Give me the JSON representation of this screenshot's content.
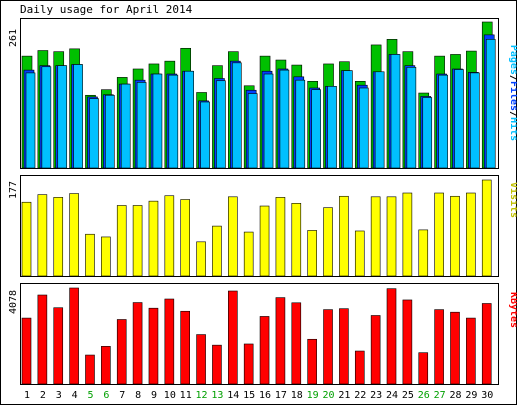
{
  "chart_data": [
    {
      "type": "bar",
      "title": "Daily usage for April 2014",
      "max_label": "261",
      "legend": [
        {
          "text": "Pages",
          "color": "#00c0ff"
        },
        {
          "text": "/",
          "color": "#000000"
        },
        {
          "text": "Files",
          "color": "#0040ff"
        },
        {
          "text": "/",
          "color": "#000000"
        },
        {
          "text": "Hits",
          "color": "#00c0ff"
        }
      ],
      "categories": [
        "1",
        "2",
        "3",
        "4",
        "5",
        "6",
        "7",
        "8",
        "9",
        "10",
        "11",
        "12",
        "13",
        "14",
        "15",
        "16",
        "17",
        "18",
        "19",
        "20",
        "21",
        "22",
        "23",
        "24",
        "25",
        "26",
        "27",
        "28",
        "29",
        "30"
      ],
      "weekend": [
        false,
        false,
        false,
        false,
        true,
        true,
        false,
        false,
        false,
        false,
        false,
        true,
        true,
        false,
        false,
        false,
        false,
        false,
        true,
        true,
        false,
        false,
        false,
        false,
        false,
        true,
        true,
        false,
        false,
        false
      ],
      "ylim": [
        0,
        261
      ],
      "series": [
        {
          "name": "Hits",
          "color": "#00c000",
          "values": [
            200,
            210,
            208,
            213,
            130,
            140,
            162,
            177,
            186,
            191,
            214,
            135,
            183,
            208,
            147,
            200,
            193,
            184,
            155,
            186,
            190,
            155,
            220,
            230,
            208,
            134,
            200,
            203,
            209,
            261
          ]
        },
        {
          "name": "Files",
          "color": "#0040ff",
          "values": [
            175,
            183,
            183,
            185,
            127,
            131,
            150,
            157,
            168,
            168,
            173,
            120,
            160,
            191,
            139,
            173,
            177,
            163,
            143,
            146,
            174,
            148,
            172,
            203,
            183,
            128,
            168,
            177,
            171,
            238
          ]
        },
        {
          "name": "Pages",
          "color": "#00c0ff",
          "values": [
            170,
            181,
            183,
            185,
            124,
            130,
            150,
            153,
            168,
            166,
            173,
            118,
            156,
            188,
            133,
            168,
            175,
            157,
            140,
            146,
            174,
            143,
            172,
            203,
            180,
            126,
            166,
            176,
            170,
            230
          ]
        }
      ]
    },
    {
      "type": "bar",
      "max_label": "177",
      "legend": "Visits",
      "legend_color": "#c0c000",
      "ylim": [
        0,
        177
      ],
      "series": [
        {
          "name": "Visits",
          "color": "#ffff00",
          "values": [
            136,
            150,
            145,
            152,
            77,
            72,
            130,
            130,
            138,
            148,
            141,
            63,
            92,
            146,
            81,
            129,
            145,
            134,
            84,
            126,
            147,
            83,
            146,
            146,
            153,
            85,
            153,
            147,
            153,
            177
          ]
        }
      ]
    },
    {
      "type": "bar",
      "max_label": "4078",
      "legend": "KBytes",
      "legend_color": "#ff0000",
      "ylim": [
        0,
        4078
      ],
      "series": [
        {
          "name": "KBytes",
          "color": "#ff0000",
          "values": [
            2800,
            3780,
            3240,
            4078,
            1230,
            1600,
            2740,
            3460,
            3220,
            3610,
            3090,
            2100,
            1650,
            3950,
            1700,
            2870,
            3670,
            3450,
            1900,
            3160,
            3200,
            1400,
            2910,
            4050,
            3570,
            1330,
            3160,
            3050,
            2800,
            3420
          ]
        }
      ]
    }
  ]
}
